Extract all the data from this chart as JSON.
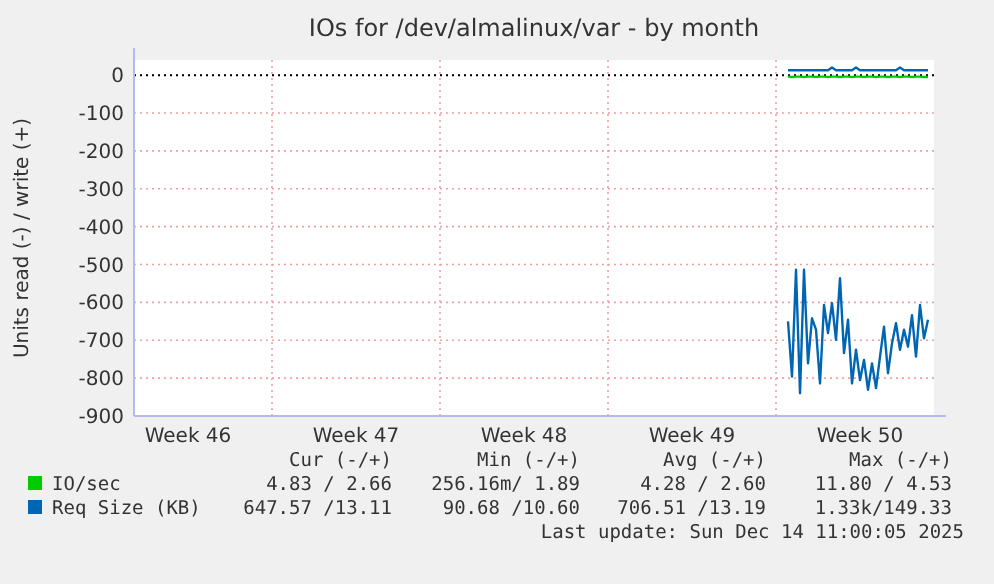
{
  "chart_data": {
    "type": "line",
    "title": "IOs for /dev/almalinux/var - by month",
    "ylabel": "Units read (-) / write (+)",
    "categories": [
      null,
      null,
      null,
      null,
      null,
      null,
      null,
      null,
      null,
      null,
      null,
      null,
      null,
      "Week 46",
      null,
      null,
      null,
      null,
      null,
      null,
      null,
      null,
      null,
      null,
      null,
      null,
      null,
      null,
      null,
      null,
      null,
      null,
      null,
      null,
      null,
      null,
      null,
      null,
      null,
      null,
      null,
      null,
      null,
      null,
      null,
      null,
      null,
      null,
      null,
      null,
      null,
      null,
      null,
      null,
      null,
      "Week 47",
      null,
      null,
      null,
      null,
      null,
      null,
      null,
      null,
      null,
      null,
      null,
      null,
      null,
      null,
      null,
      null,
      null,
      null,
      null,
      null,
      null,
      null,
      null,
      null,
      null,
      null,
      null,
      null,
      null,
      null,
      null,
      null,
      null,
      null,
      null,
      null,
      null,
      null,
      null,
      null,
      null,
      "Week 48",
      null,
      null,
      null,
      null,
      null,
      null,
      null,
      null,
      null,
      null,
      null,
      null,
      null,
      null,
      null,
      null,
      null,
      null,
      null,
      null,
      null,
      null,
      null,
      null,
      null,
      null,
      null,
      null,
      null,
      null,
      null,
      null,
      null,
      null,
      null,
      null,
      null,
      null,
      null,
      null,
      null,
      "Week 49",
      null,
      null,
      null,
      null,
      null,
      null,
      null,
      null,
      null,
      null,
      null,
      null,
      null,
      null,
      null,
      null,
      null,
      null,
      null,
      null,
      null,
      null,
      null,
      null,
      null,
      null,
      null,
      null,
      null,
      null,
      null,
      null,
      null,
      null,
      null,
      null,
      null,
      null,
      null,
      null,
      null,
      "Week 50",
      null,
      null,
      null,
      null,
      null,
      null,
      null,
      null,
      null,
      null,
      null,
      null,
      null,
      null,
      null,
      null,
      null,
      null
    ],
    "ylim": [
      -900,
      40
    ],
    "yticks": [
      0,
      -100,
      -200,
      -300,
      -400,
      -500,
      -600,
      -700,
      -800,
      -900
    ],
    "grid": true,
    "legend": "bottom",
    "marker": "none",
    "line_style": "solid",
    "ref_lines": [
      {
        "axis": "y",
        "value": 0,
        "color": "#000000",
        "line_style": "dotted"
      }
    ],
    "series": [
      {
        "name": "IO/sec",
        "color": "#00cc00",
        "values": [
          null,
          null,
          null,
          null,
          null,
          null,
          null,
          null,
          null,
          null,
          null,
          null,
          null,
          null,
          null,
          null,
          null,
          null,
          null,
          null,
          null,
          null,
          null,
          null,
          null,
          null,
          null,
          null,
          null,
          null,
          null,
          null,
          null,
          null,
          null,
          null,
          null,
          null,
          null,
          null,
          null,
          null,
          null,
          null,
          null,
          null,
          null,
          null,
          null,
          null,
          null,
          null,
          null,
          null,
          null,
          null,
          null,
          null,
          null,
          null,
          null,
          null,
          null,
          null,
          null,
          null,
          null,
          null,
          null,
          null,
          null,
          null,
          null,
          null,
          null,
          null,
          null,
          null,
          null,
          null,
          null,
          null,
          null,
          null,
          null,
          null,
          null,
          null,
          null,
          null,
          null,
          null,
          null,
          null,
          null,
          null,
          null,
          null,
          null,
          null,
          null,
          null,
          null,
          null,
          null,
          null,
          null,
          null,
          null,
          null,
          null,
          null,
          null,
          null,
          null,
          null,
          null,
          null,
          null,
          null,
          null,
          null,
          null,
          null,
          null,
          null,
          null,
          null,
          null,
          null,
          null,
          null,
          null,
          null,
          null,
          null,
          null,
          null,
          null,
          null,
          null,
          null,
          null,
          null,
          null,
          null,
          null,
          null,
          null,
          null,
          null,
          null,
          null,
          null,
          null,
          null,
          null,
          null,
          null,
          null,
          null,
          null,
          null,
          -4,
          -5,
          -4,
          -4,
          -5,
          -4,
          -4,
          -5,
          -4,
          -4,
          -5,
          -4,
          -4,
          -5,
          -4,
          -4,
          -5,
          -4,
          -4,
          -5,
          -4,
          -4,
          -5,
          -4,
          -4,
          -5,
          -4,
          -4,
          -5,
          -4,
          -4,
          -5,
          -4,
          -4,
          -5,
          -5,
          null
        ]
      },
      {
        "name": "Req Size (KB)",
        "color": "#0066b3",
        "values": [
          null,
          null,
          null,
          null,
          null,
          null,
          null,
          null,
          null,
          null,
          null,
          null,
          null,
          null,
          null,
          null,
          null,
          null,
          null,
          null,
          null,
          null,
          null,
          null,
          null,
          null,
          null,
          null,
          null,
          null,
          null,
          null,
          null,
          null,
          null,
          null,
          null,
          null,
          null,
          null,
          null,
          null,
          null,
          null,
          null,
          null,
          null,
          null,
          null,
          null,
          null,
          null,
          null,
          null,
          null,
          null,
          null,
          null,
          null,
          null,
          null,
          null,
          null,
          null,
          null,
          null,
          null,
          null,
          null,
          null,
          null,
          null,
          null,
          null,
          null,
          null,
          null,
          null,
          null,
          null,
          null,
          null,
          null,
          null,
          null,
          null,
          null,
          null,
          null,
          null,
          null,
          null,
          null,
          null,
          null,
          null,
          null,
          null,
          null,
          null,
          null,
          null,
          null,
          null,
          null,
          null,
          null,
          null,
          null,
          null,
          null,
          null,
          null,
          null,
          null,
          null,
          null,
          null,
          null,
          null,
          null,
          null,
          null,
          null,
          null,
          null,
          null,
          null,
          null,
          null,
          null,
          null,
          null,
          null,
          null,
          null,
          null,
          null,
          null,
          null,
          null,
          null,
          null,
          null,
          null,
          null,
          null,
          null,
          null,
          null,
          null,
          null,
          null,
          null,
          null,
          null,
          null,
          null,
          null,
          null,
          null,
          null,
          null,
          13,
          13,
          13,
          13,
          13,
          13,
          13,
          13,
          13,
          13,
          13,
          20,
          13,
          13,
          13,
          13,
          13,
          20,
          13,
          13,
          13,
          13,
          13,
          13,
          13,
          13,
          13,
          13,
          20,
          13,
          13,
          13,
          13,
          13,
          13,
          13,
          null
        ]
      },
      {
        "color": "#0066b3",
        "values": [
          null,
          null,
          null,
          null,
          null,
          null,
          null,
          null,
          null,
          null,
          null,
          null,
          null,
          null,
          null,
          null,
          null,
          null,
          null,
          null,
          null,
          null,
          null,
          null,
          null,
          null,
          null,
          null,
          null,
          null,
          null,
          null,
          null,
          null,
          null,
          null,
          null,
          null,
          null,
          null,
          null,
          null,
          null,
          null,
          null,
          null,
          null,
          null,
          null,
          null,
          null,
          null,
          null,
          null,
          null,
          null,
          null,
          null,
          null,
          null,
          null,
          null,
          null,
          null,
          null,
          null,
          null,
          null,
          null,
          null,
          null,
          null,
          null,
          null,
          null,
          null,
          null,
          null,
          null,
          null,
          null,
          null,
          null,
          null,
          null,
          null,
          null,
          null,
          null,
          null,
          null,
          null,
          null,
          null,
          null,
          null,
          null,
          null,
          null,
          null,
          null,
          null,
          null,
          null,
          null,
          null,
          null,
          null,
          null,
          null,
          null,
          null,
          null,
          null,
          null,
          null,
          null,
          null,
          null,
          null,
          null,
          null,
          null,
          null,
          null,
          null,
          null,
          null,
          null,
          null,
          null,
          null,
          null,
          null,
          null,
          null,
          null,
          null,
          null,
          null,
          null,
          null,
          null,
          null,
          null,
          null,
          null,
          null,
          null,
          null,
          null,
          null,
          null,
          null,
          null,
          null,
          null,
          null,
          null,
          null,
          null,
          null,
          null,
          -650,
          -796,
          -514,
          -840,
          -514,
          -761,
          -642,
          -672,
          -814,
          -607,
          -681,
          -602,
          -699,
          -536,
          -734,
          -646,
          -814,
          -725,
          -805,
          -752,
          -831,
          -761,
          -826,
          -743,
          -664,
          -787,
          -708,
          -655,
          -725,
          -672,
          -717,
          -634,
          -743,
          -607,
          -695,
          -646,
          null
        ]
      }
    ],
    "annotations": [
      "Cur (-/+)",
      "Min (-/+)",
      "Avg (-/+)",
      "Max (-/+)",
      "4.83 / 2.66",
      "256.16m/ 1.89",
      "4.28 / 2.60",
      "11.80 / 4.53",
      "647.57 /13.11",
      "90.68 /10.60",
      "706.51 /13.19",
      "1.33k/149.33",
      "Last update: Sun Dec 14 11:00:05 2025"
    ]
  }
}
